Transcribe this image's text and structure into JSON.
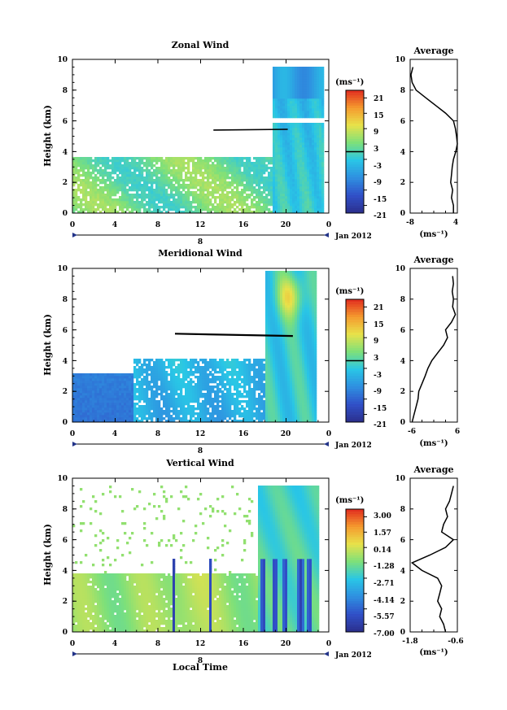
{
  "chart_data": [
    {
      "type": "heatmap",
      "title": "Zonal Wind",
      "ylabel": "Height (km)",
      "xlabel": "",
      "x_ticks": [
        "0",
        "4",
        "8",
        "12",
        "16",
        "20",
        "0"
      ],
      "y_ticks": [
        "0",
        "2",
        "4",
        "6",
        "8",
        "10"
      ],
      "ylim": [
        0,
        10
      ],
      "date_marker": "8",
      "date_label": "Jan 2012",
      "colorbar": {
        "unit": "(ms⁻¹)",
        "ticks": [
          "21",
          "15",
          "9",
          "3",
          "-3",
          "-9",
          "-15",
          "-21"
        ],
        "range": [
          -24,
          24
        ]
      },
      "average": {
        "title": "Average",
        "xlabel": "(ms⁻¹)",
        "x_ticks": [
          "-8",
          "4"
        ],
        "xlim": [
          -8,
          4
        ],
        "profile": [
          [
            3.0,
            0.0
          ],
          [
            3.0,
            0.5
          ],
          [
            2.5,
            1.0
          ],
          [
            2.8,
            1.5
          ],
          [
            2.3,
            2.0
          ],
          [
            2.5,
            2.5
          ],
          [
            2.7,
            3.0
          ],
          [
            3.0,
            3.5
          ],
          [
            3.6,
            4.0
          ],
          [
            4.0,
            4.5
          ],
          [
            3.8,
            5.0
          ],
          [
            3.5,
            5.5
          ],
          [
            3.0,
            6.0
          ],
          [
            1.0,
            6.5
          ],
          [
            -1.5,
            7.0
          ],
          [
            -4.0,
            7.5
          ],
          [
            -6.5,
            8.0
          ],
          [
            -7.5,
            8.5
          ],
          [
            -7.8,
            9.0
          ],
          [
            -7.3,
            9.5
          ]
        ]
      }
    },
    {
      "type": "heatmap",
      "title": "Meridional Wind",
      "ylabel": "Height (km)",
      "xlabel": "",
      "x_ticks": [
        "0",
        "4",
        "8",
        "12",
        "16",
        "20",
        "0"
      ],
      "y_ticks": [
        "0",
        "2",
        "4",
        "6",
        "8",
        "10"
      ],
      "ylim": [
        0,
        10
      ],
      "date_marker": "8",
      "date_label": "Jan 2012",
      "colorbar": {
        "unit": "(ms⁻¹)",
        "ticks": [
          "21",
          "15",
          "9",
          "3",
          "-3",
          "-9",
          "-15",
          "-21"
        ],
        "range": [
          -24,
          24
        ]
      },
      "average": {
        "title": "Average",
        "xlabel": "(ms⁻¹)",
        "x_ticks": [
          "-6",
          "6"
        ],
        "xlim": [
          -6,
          6
        ],
        "profile": [
          [
            -5.5,
            0.0
          ],
          [
            -5.0,
            0.5
          ],
          [
            -4.5,
            1.0
          ],
          [
            -4.0,
            1.5
          ],
          [
            -3.8,
            2.0
          ],
          [
            -3.0,
            2.5
          ],
          [
            -2.2,
            3.0
          ],
          [
            -1.5,
            3.5
          ],
          [
            -0.5,
            4.0
          ],
          [
            1.0,
            4.5
          ],
          [
            2.5,
            5.0
          ],
          [
            3.5,
            5.5
          ],
          [
            3.0,
            6.0
          ],
          [
            4.5,
            6.5
          ],
          [
            5.5,
            7.0
          ],
          [
            4.8,
            7.5
          ],
          [
            5.0,
            8.0
          ],
          [
            4.7,
            8.5
          ],
          [
            5.0,
            9.0
          ],
          [
            4.8,
            9.5
          ]
        ]
      }
    },
    {
      "type": "heatmap",
      "title": "Vertical Wind",
      "ylabel": "Height (km)",
      "xlabel": "Local Time",
      "x_ticks": [
        "0",
        "4",
        "8",
        "12",
        "16",
        "20",
        "0"
      ],
      "y_ticks": [
        "0",
        "2",
        "4",
        "6",
        "8",
        "10"
      ],
      "ylim": [
        0,
        10
      ],
      "date_marker": "8",
      "date_label": "Jan 2012",
      "colorbar": {
        "unit": "(ms⁻¹)",
        "ticks": [
          "3.00",
          "1.57",
          "0.14",
          "-1.28",
          "-2.71",
          "-4.14",
          "-5.57",
          "-7.00"
        ],
        "range": [
          -7.7,
          3.7
        ]
      },
      "average": {
        "title": "Average",
        "xlabel": "(ms⁻¹)",
        "x_ticks": [
          "-1.8",
          "-0.6"
        ],
        "xlim": [
          -1.8,
          -0.6
        ],
        "profile": [
          [
            -0.9,
            0.0
          ],
          [
            -0.95,
            0.5
          ],
          [
            -1.05,
            1.0
          ],
          [
            -1.0,
            1.5
          ],
          [
            -1.1,
            2.0
          ],
          [
            -1.05,
            2.5
          ],
          [
            -1.0,
            3.0
          ],
          [
            -1.1,
            3.5
          ],
          [
            -1.5,
            4.0
          ],
          [
            -1.75,
            4.5
          ],
          [
            -1.3,
            5.0
          ],
          [
            -0.9,
            5.5
          ],
          [
            -0.7,
            6.0
          ],
          [
            -1.0,
            6.5
          ],
          [
            -0.95,
            7.0
          ],
          [
            -0.85,
            7.5
          ],
          [
            -0.9,
            8.0
          ],
          [
            -0.8,
            8.5
          ],
          [
            -0.75,
            9.0
          ],
          [
            -0.7,
            9.5
          ]
        ]
      }
    }
  ]
}
